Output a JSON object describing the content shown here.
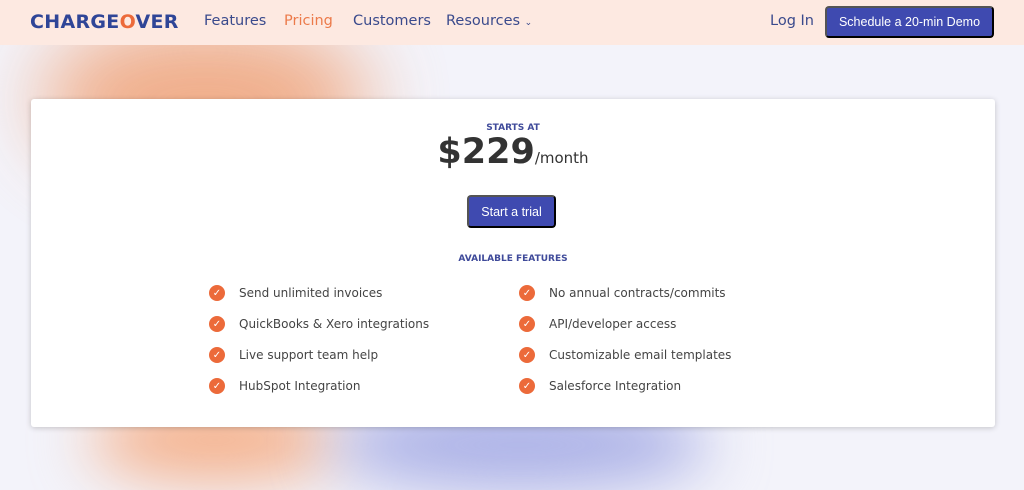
{
  "nav": {
    "logo": "CHARGEOVER",
    "links": [
      "Features",
      "Pricing",
      "Customers",
      "Resources"
    ],
    "login": "Log In",
    "demo": "Schedule a 20-min Demo"
  },
  "pricing": {
    "starts_at": "STARTS AT",
    "price": "$229",
    "period": "/month",
    "cta": "Start a trial",
    "features_heading": "AVAILABLE FEATURES",
    "features_left": [
      "Send unlimited invoices",
      "QuickBooks & Xero integrations",
      "Live support team help",
      "HubSpot Integration"
    ],
    "features_right": [
      "No annual contracts/commits",
      "API/developer access",
      "Customizable email templates",
      "Salesforce Integration"
    ]
  },
  "colors": {
    "brand": "#2f4597",
    "accent": "#ec6a3a",
    "button": "#3f4ab0"
  }
}
